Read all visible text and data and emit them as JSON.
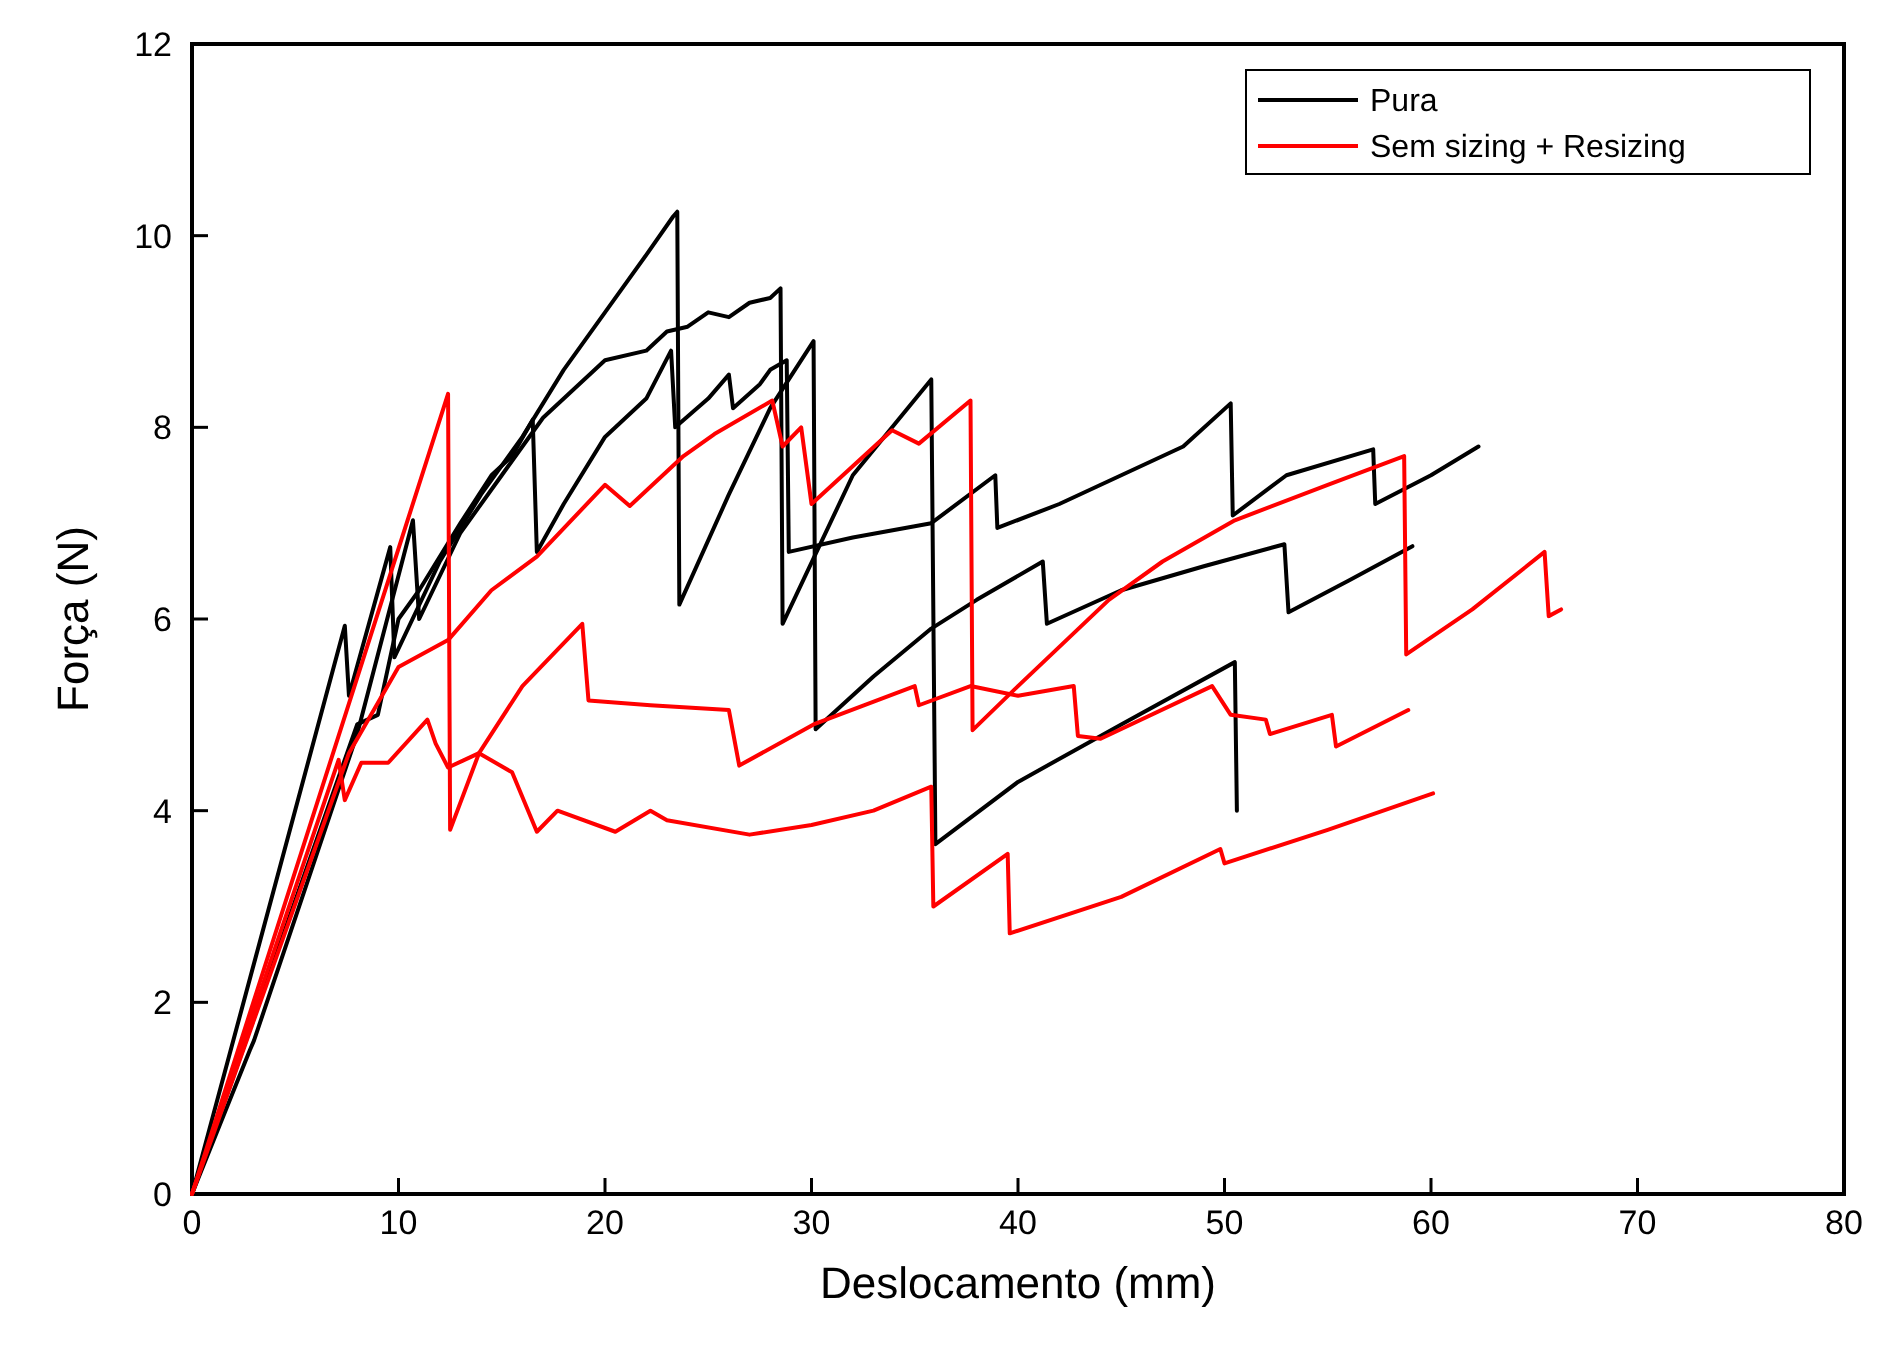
{
  "chart_data": {
    "type": "line",
    "xlabel": "Deslocamento (mm)",
    "ylabel": "Força (N)",
    "xlim": [
      0,
      80
    ],
    "ylim": [
      0,
      12
    ],
    "xticks": [
      0,
      10,
      20,
      30,
      40,
      50,
      60,
      70,
      80
    ],
    "yticks": [
      0,
      2,
      4,
      6,
      8,
      10,
      12
    ],
    "grid": false,
    "legend": "top right",
    "marker": "none",
    "line_style": "solid",
    "series": [
      {
        "name": "Pura",
        "color": "#000000",
        "x": [
          0,
          7.4,
          7.6,
          9.6,
          9.8,
          12,
          14,
          16,
          18,
          20,
          22,
          23.3,
          23.5,
          23.6,
          26,
          28,
          30.1,
          30.2,
          33,
          35.8,
          38,
          41.2,
          41.4,
          45,
          49,
          52.9,
          53.1,
          56,
          59.1
        ],
        "values": [
          0,
          5.93,
          5.2,
          6.75,
          5.6,
          6.6,
          7.3,
          7.9,
          8.6,
          9.2,
          9.8,
          10.2,
          10.25,
          6.15,
          7.3,
          8.2,
          8.9,
          4.85,
          5.4,
          5.9,
          6.2,
          6.6,
          5.95,
          6.3,
          6.55,
          6.78,
          6.07,
          6.4,
          6.76
        ]
      },
      {
        "color": "#000000",
        "x": [
          0,
          2.8,
          3,
          8,
          10.7,
          11,
          13,
          15,
          17,
          20,
          22,
          23,
          24,
          25,
          26,
          27,
          28,
          28.5,
          28.6,
          32,
          35.8,
          36,
          40,
          45,
          50.5,
          50.6
        ],
        "values": [
          0,
          1.5,
          1.6,
          4.8,
          7.03,
          6,
          6.9,
          7.5,
          8.1,
          8.7,
          8.8,
          9,
          9.05,
          9.2,
          9.15,
          9.3,
          9.35,
          9.45,
          5.95,
          7.5,
          8.5,
          3.65,
          4.3,
          4.9,
          5.55,
          4
        ]
      },
      {
        "color": "#000000",
        "x": [
          0,
          8,
          9,
          10,
          11,
          13,
          14.5,
          15.5,
          16.5,
          16.7,
          18,
          20,
          22,
          23.2,
          23.4,
          25,
          26,
          26.2,
          27.5,
          28,
          28.8,
          28.9,
          32,
          35.8,
          38.9,
          39,
          42,
          45,
          48,
          50.3,
          50.4,
          53,
          57.2,
          57.3,
          60,
          62.3
        ],
        "values": [
          0,
          4.9,
          5,
          6,
          6.3,
          7,
          7.5,
          7.7,
          8.08,
          6.7,
          7.2,
          7.9,
          8.3,
          8.8,
          8,
          8.3,
          8.55,
          8.2,
          8.45,
          8.6,
          8.7,
          6.7,
          6.85,
          7,
          7.5,
          6.95,
          7.2,
          7.5,
          7.8,
          8.25,
          7.08,
          7.5,
          7.77,
          7.2,
          7.5,
          7.8
        ]
      },
      {
        "name": "Sem sizing + Resizing",
        "color": "#ff0000",
        "x": [
          0,
          12.4,
          12.5,
          13.9,
          16,
          18.9,
          19.2,
          22.2,
          26,
          26.5,
          30.1,
          35,
          35.2,
          37.7,
          40,
          42.7,
          42.9,
          44,
          49.4,
          50.3,
          52,
          52.2,
          55.2,
          55.4,
          58.9
        ],
        "values": [
          0,
          8.35,
          3.8,
          4.6,
          5.3,
          5.95,
          5.15,
          5.1,
          5.05,
          4.47,
          4.9,
          5.3,
          5.1,
          5.3,
          5.2,
          5.3,
          4.78,
          4.75,
          5.3,
          5,
          4.95,
          4.8,
          5,
          4.67,
          5.05
        ]
      },
      {
        "color": "#ff0000",
        "x": [
          0,
          7.1,
          7.4,
          8.2,
          9.5,
          11.4,
          11.8,
          12.4,
          13.9,
          15.5,
          16.7,
          17.7,
          20.5,
          22.2,
          23,
          27,
          30,
          33,
          35.8,
          35.9,
          39.5,
          39.6,
          45,
          49.8,
          50,
          55,
          60.1
        ],
        "values": [
          0,
          4.53,
          4.11,
          4.5,
          4.5,
          4.95,
          4.7,
          4.45,
          4.6,
          4.4,
          3.78,
          4,
          3.78,
          4,
          3.9,
          3.75,
          3.85,
          4,
          4.25,
          3,
          3.55,
          2.72,
          3.1,
          3.6,
          3.45,
          3.8,
          4.18
        ]
      },
      {
        "color": "#ff0000",
        "x": [
          0,
          7.6,
          10,
          12.4,
          14.5,
          16.7,
          20,
          21.2,
          23.8,
          25.3,
          28.1,
          28.6,
          29.5,
          30,
          33.9,
          35.2,
          37.7,
          37.8,
          40,
          44.4,
          47,
          50.5,
          55,
          58.7,
          58.8,
          62,
          65.5,
          65.7,
          66.3
        ],
        "values": [
          0,
          4.6,
          5.5,
          5.78,
          6.3,
          6.65,
          7.4,
          7.18,
          7.7,
          7.93,
          8.28,
          7.8,
          8,
          7.2,
          7.97,
          7.83,
          8.28,
          4.84,
          5.3,
          6.2,
          6.6,
          7.03,
          7.4,
          7.7,
          5.63,
          6.1,
          6.7,
          6.03,
          6.1
        ]
      }
    ]
  }
}
